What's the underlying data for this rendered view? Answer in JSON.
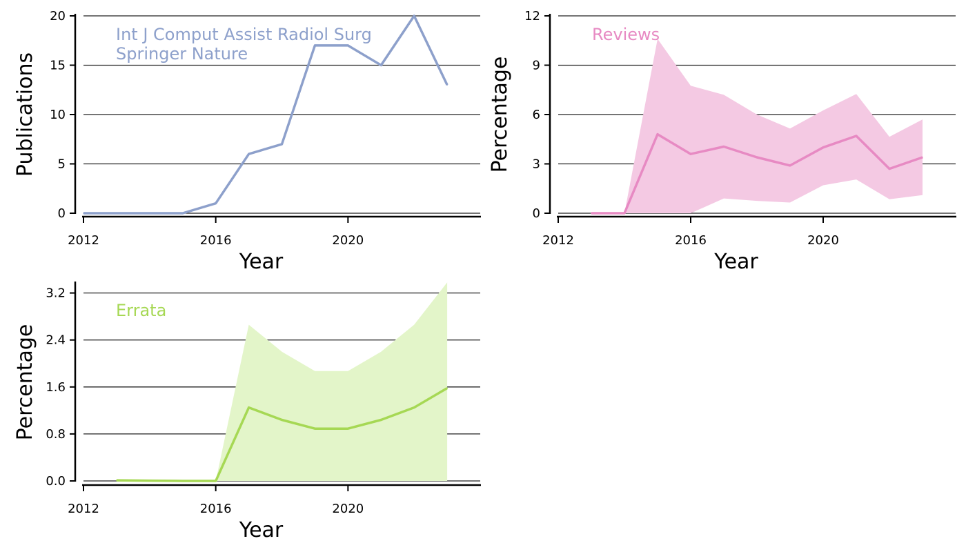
{
  "chart_data": [
    {
      "type": "line",
      "title": "",
      "annotation": [
        "Int J Comput Assist Radiol Surg",
        "Springer Nature"
      ],
      "xlabel": "Year",
      "ylabel": "Publications",
      "color": "#8da0cb",
      "xlim": [
        2012,
        2024
      ],
      "ylim": [
        0,
        20
      ],
      "x_ticks": [
        2012,
        2016,
        2020
      ],
      "y_ticks": [
        0,
        5,
        10,
        15,
        20
      ],
      "y_tick_labels": [
        "0",
        "5",
        "10",
        "15",
        "20"
      ],
      "grid": "horizontal",
      "series": [
        {
          "x": [
            2012,
            2013,
            2014,
            2015,
            2016,
            2017,
            2018,
            2019,
            2020,
            2021,
            2022,
            2023
          ],
          "values": [
            0,
            0,
            0,
            0,
            1,
            6,
            7,
            17,
            17,
            15,
            20,
            13
          ]
        }
      ]
    },
    {
      "type": "area",
      "title": "",
      "annotation": [
        "Reviews"
      ],
      "xlabel": "Year",
      "ylabel": "Percentage",
      "color": "#e78ac3",
      "band_color": "#f4c9e3",
      "xlim": [
        2012,
        2024
      ],
      "ylim": [
        0,
        12
      ],
      "x_ticks": [
        2012,
        2016,
        2020
      ],
      "y_ticks": [
        0,
        3,
        6,
        9,
        12
      ],
      "y_tick_labels": [
        "0",
        "3",
        "6",
        "9",
        "12"
      ],
      "grid": "horizontal",
      "series": [
        {
          "x": [
            2013,
            2014,
            2015,
            2016,
            2017,
            2018,
            2019,
            2020,
            2021,
            2022,
            2023
          ],
          "values": [
            0,
            0,
            4.8,
            3.6,
            4.05,
            3.4,
            2.9,
            4.0,
            4.7,
            2.7,
            3.4
          ],
          "lower": [
            0,
            0,
            -0.5,
            -0.3,
            0.9,
            0.75,
            0.65,
            1.7,
            2.05,
            0.85,
            1.1
          ],
          "upper": [
            0,
            0,
            10.6,
            7.75,
            7.2,
            6.0,
            5.15,
            6.25,
            7.25,
            4.65,
            5.7
          ]
        }
      ]
    },
    {
      "type": "area",
      "title": "",
      "annotation": [
        "Errata"
      ],
      "xlabel": "Year",
      "ylabel": "Percentage",
      "color": "#a6d854",
      "band_color": "#e3f5c9",
      "xlim": [
        2012,
        2024
      ],
      "ylim": [
        0,
        3.36
      ],
      "x_ticks": [
        2012,
        2016,
        2020
      ],
      "y_ticks": [
        0,
        0.8,
        1.6,
        2.4,
        3.2
      ],
      "y_tick_labels": [
        "0.0",
        "0.8",
        "1.6",
        "2.4",
        "3.2"
      ],
      "grid": "horizontal",
      "series": [
        {
          "x": [
            2013,
            2014,
            2015,
            2016,
            2017,
            2018,
            2019,
            2020,
            2021,
            2022,
            2023
          ],
          "values": [
            0.01,
            0.005,
            0,
            0,
            1.25,
            1.04,
            0.89,
            0.89,
            1.04,
            1.25,
            1.58
          ],
          "lower": [
            0,
            0,
            0,
            0,
            0,
            0,
            0,
            0,
            0,
            0,
            0
          ],
          "upper": [
            0.01,
            0.005,
            0,
            0,
            2.66,
            2.2,
            1.87,
            1.87,
            2.2,
            2.66,
            3.38
          ]
        }
      ]
    }
  ]
}
